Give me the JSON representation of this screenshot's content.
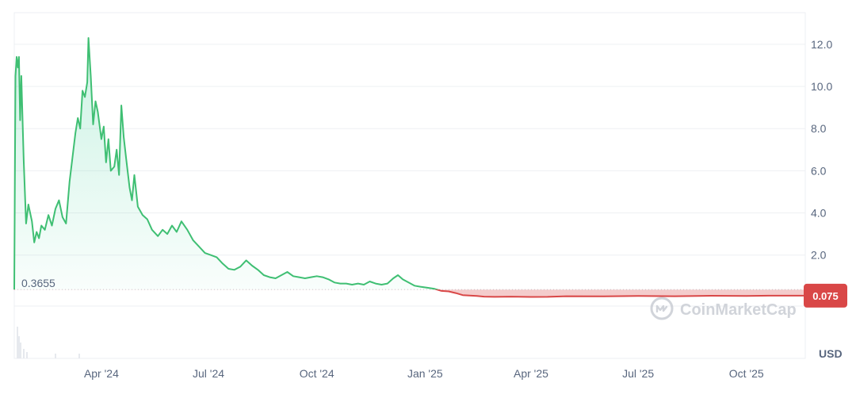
{
  "chart_data": {
    "type": "line",
    "ylabel_unit": "USD",
    "ylim": [
      -2.9,
      13.5
    ],
    "y_ticks": [
      "12.0",
      "10.0",
      "8.0",
      "6.0",
      "4.0",
      "2.0"
    ],
    "y_tick_values": [
      12,
      10,
      8,
      6,
      4,
      2
    ],
    "x_ticks": [
      "Apr '24",
      "Jul '24",
      "Oct '24",
      "Jan '25",
      "Apr '25",
      "Jul '25",
      "Oct '25"
    ],
    "x_tick_dates": [
      "2024-04-01",
      "2024-07-01",
      "2024-10-01",
      "2025-01-01",
      "2025-04-01",
      "2025-07-01",
      "2025-10-01"
    ],
    "x_range": [
      "2024-01-18",
      "2025-11-20"
    ],
    "start_value_label": "0.3655",
    "last_value_label": "0.075",
    "baseline_value": 0.3655,
    "colors": {
      "above": "#16c784",
      "line_up": "#3fbf73",
      "below": "#d94747",
      "label_bg": "#d94747"
    },
    "series": [
      {
        "points": [
          [
            "2024-01-18",
            0.3655
          ],
          [
            "2024-01-19",
            10.5
          ],
          [
            "2024-01-20",
            11.4
          ],
          [
            "2024-01-21",
            10.9
          ],
          [
            "2024-01-22",
            11.4
          ],
          [
            "2024-01-23",
            8.4
          ],
          [
            "2024-01-24",
            10.5
          ],
          [
            "2024-01-26",
            6.5
          ],
          [
            "2024-01-28",
            3.5
          ],
          [
            "2024-01-30",
            4.4
          ],
          [
            "2024-02-02",
            3.6
          ],
          [
            "2024-02-04",
            2.6
          ],
          [
            "2024-02-06",
            3.1
          ],
          [
            "2024-02-08",
            2.8
          ],
          [
            "2024-02-10",
            3.4
          ],
          [
            "2024-02-13",
            3.2
          ],
          [
            "2024-02-16",
            3.9
          ],
          [
            "2024-02-19",
            3.4
          ],
          [
            "2024-02-22",
            4.2
          ],
          [
            "2024-02-25",
            4.6
          ],
          [
            "2024-02-28",
            3.8
          ],
          [
            "2024-03-02",
            3.5
          ],
          [
            "2024-03-05",
            5.5
          ],
          [
            "2024-03-08",
            6.9
          ],
          [
            "2024-03-10",
            7.8
          ],
          [
            "2024-03-12",
            8.5
          ],
          [
            "2024-03-14",
            8.0
          ],
          [
            "2024-03-16",
            9.8
          ],
          [
            "2024-03-18",
            9.5
          ],
          [
            "2024-03-20",
            10.2
          ],
          [
            "2024-03-21",
            12.3
          ],
          [
            "2024-03-23",
            10.5
          ],
          [
            "2024-03-25",
            8.2
          ],
          [
            "2024-03-27",
            9.3
          ],
          [
            "2024-03-29",
            8.8
          ],
          [
            "2024-04-01",
            7.5
          ],
          [
            "2024-04-03",
            8.1
          ],
          [
            "2024-04-05",
            6.4
          ],
          [
            "2024-04-07",
            7.5
          ],
          [
            "2024-04-09",
            6.0
          ],
          [
            "2024-04-12",
            6.2
          ],
          [
            "2024-04-14",
            7.0
          ],
          [
            "2024-04-16",
            5.8
          ],
          [
            "2024-04-18",
            9.1
          ],
          [
            "2024-04-20",
            7.6
          ],
          [
            "2024-04-22",
            6.6
          ],
          [
            "2024-04-25",
            5.2
          ],
          [
            "2024-04-27",
            4.6
          ],
          [
            "2024-04-29",
            5.8
          ],
          [
            "2024-05-02",
            4.3
          ],
          [
            "2024-05-06",
            3.9
          ],
          [
            "2024-05-10",
            3.7
          ],
          [
            "2024-05-14",
            3.2
          ],
          [
            "2024-05-19",
            2.9
          ],
          [
            "2024-05-23",
            3.2
          ],
          [
            "2024-05-27",
            3.0
          ],
          [
            "2024-05-31",
            3.4
          ],
          [
            "2024-06-04",
            3.1
          ],
          [
            "2024-06-08",
            3.6
          ],
          [
            "2024-06-13",
            3.2
          ],
          [
            "2024-06-18",
            2.7
          ],
          [
            "2024-06-23",
            2.4
          ],
          [
            "2024-06-28",
            2.1
          ],
          [
            "2024-07-03",
            2.0
          ],
          [
            "2024-07-08",
            1.9
          ],
          [
            "2024-07-13",
            1.6
          ],
          [
            "2024-07-18",
            1.35
          ],
          [
            "2024-07-23",
            1.3
          ],
          [
            "2024-07-28",
            1.45
          ],
          [
            "2024-08-02",
            1.75
          ],
          [
            "2024-08-07",
            1.5
          ],
          [
            "2024-08-12",
            1.3
          ],
          [
            "2024-08-17",
            1.05
          ],
          [
            "2024-08-22",
            0.95
          ],
          [
            "2024-08-27",
            0.9
          ],
          [
            "2024-09-01",
            1.05
          ],
          [
            "2024-09-06",
            1.2
          ],
          [
            "2024-09-11",
            1.0
          ],
          [
            "2024-09-16",
            0.95
          ],
          [
            "2024-09-21",
            0.9
          ],
          [
            "2024-09-26",
            0.95
          ],
          [
            "2024-10-01",
            1.0
          ],
          [
            "2024-10-06",
            0.95
          ],
          [
            "2024-10-11",
            0.85
          ],
          [
            "2024-10-16",
            0.7
          ],
          [
            "2024-10-21",
            0.65
          ],
          [
            "2024-10-26",
            0.65
          ],
          [
            "2024-10-31",
            0.6
          ],
          [
            "2024-11-05",
            0.65
          ],
          [
            "2024-11-10",
            0.6
          ],
          [
            "2024-11-15",
            0.75
          ],
          [
            "2024-11-20",
            0.65
          ],
          [
            "2024-11-25",
            0.6
          ],
          [
            "2024-11-30",
            0.65
          ],
          [
            "2024-12-05",
            0.9
          ],
          [
            "2024-12-09",
            1.05
          ],
          [
            "2024-12-13",
            0.85
          ],
          [
            "2024-12-18",
            0.7
          ],
          [
            "2024-12-23",
            0.55
          ],
          [
            "2024-12-28",
            0.5
          ],
          [
            "2025-01-03",
            0.45
          ],
          [
            "2025-01-09",
            0.4
          ],
          [
            "2025-01-15",
            0.3
          ],
          [
            "2025-01-21",
            0.28
          ],
          [
            "2025-01-27",
            0.2
          ],
          [
            "2025-02-02",
            0.1
          ],
          [
            "2025-02-08",
            0.08
          ],
          [
            "2025-02-14",
            0.06
          ],
          [
            "2025-02-20",
            0.03
          ],
          [
            "2025-03-01",
            0.02
          ],
          [
            "2025-03-15",
            0.03
          ],
          [
            "2025-04-01",
            0.015
          ],
          [
            "2025-04-15",
            0.02
          ],
          [
            "2025-05-01",
            0.05
          ],
          [
            "2025-06-01",
            0.04
          ],
          [
            "2025-07-01",
            0.06
          ],
          [
            "2025-08-01",
            0.05
          ],
          [
            "2025-09-01",
            0.07
          ],
          [
            "2025-10-01",
            0.06
          ],
          [
            "2025-10-20",
            0.075
          ],
          [
            "2025-11-20",
            0.075
          ]
        ]
      }
    ]
  },
  "watermark": {
    "text": "CoinMarketCap",
    "icon": "coinmarketcap-logo-icon"
  }
}
